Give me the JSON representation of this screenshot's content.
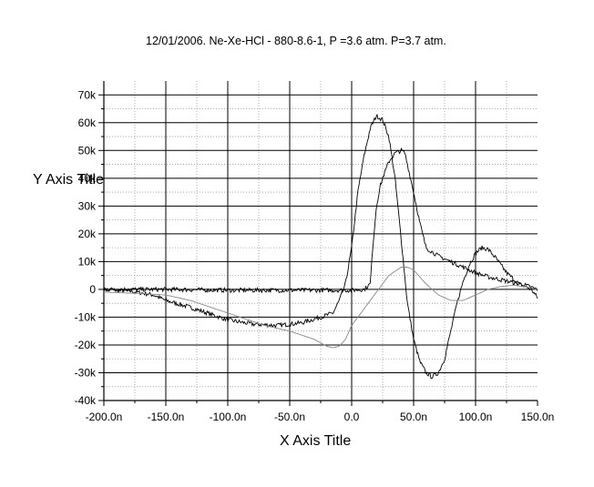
{
  "chart_data": {
    "type": "line",
    "title": "12/01/2006. Ne-Xe-HCl - 880-8.6-1, P =3.6 atm. P=3.7 atm.",
    "xlabel": "X Axis Title",
    "ylabel": "Y Axis Title",
    "xlim": [
      -200,
      150
    ],
    "ylim": [
      -40000,
      75000
    ],
    "x_unit_suffix": "n",
    "xticks": [
      -200,
      -150,
      -100,
      -50,
      0,
      50,
      100,
      150
    ],
    "xtick_labels": [
      "-200.0n",
      "-150.0n",
      "-100.0n",
      "-50.0n",
      "0.0",
      "50.0n",
      "100.0n",
      "150.0n"
    ],
    "yticks": [
      -40000,
      -30000,
      -20000,
      -10000,
      0,
      10000,
      20000,
      30000,
      40000,
      50000,
      60000,
      70000
    ],
    "ytick_labels": [
      "-40k",
      "-30k",
      "-20k",
      "-10k",
      "0",
      "10k",
      "20k",
      "30k",
      "40k",
      "50k",
      "60k",
      "70k"
    ],
    "grid": true,
    "legend": "none",
    "series": [
      {
        "color": "#000000",
        "noisy": true,
        "x": [
          -200,
          -180,
          -160,
          -150,
          -130,
          -100,
          -80,
          -60,
          -40,
          -25,
          -15,
          -10,
          -5,
          0,
          5,
          10,
          15,
          20,
          25,
          30,
          35,
          40,
          45,
          50,
          55,
          60,
          65,
          70,
          75,
          80,
          85,
          90,
          95,
          100,
          105,
          110,
          115,
          120,
          125,
          130,
          135,
          140,
          145,
          150
        ],
        "y": [
          0,
          -500,
          -2000,
          -4000,
          -6500,
          -11000,
          -12500,
          -13000,
          -12000,
          -10000,
          -8500,
          -4000,
          2000,
          15000,
          35000,
          48000,
          58000,
          62500,
          61000,
          55000,
          40000,
          18000,
          -5000,
          -18000,
          -26000,
          -30000,
          -31500,
          -30000,
          -25000,
          -15000,
          -5000,
          3000,
          9000,
          13000,
          15000,
          14500,
          12000,
          9000,
          6000,
          4000,
          2000,
          1000,
          0,
          -3000
        ]
      },
      {
        "color": "#000000",
        "noisy": true,
        "x": [
          -200,
          -150,
          -100,
          -50,
          0,
          10,
          15,
          17,
          20,
          23,
          25,
          30,
          35,
          40,
          43,
          45,
          50,
          55,
          60,
          70,
          80,
          90,
          100,
          110,
          120,
          130,
          140,
          150
        ],
        "y": [
          0,
          0,
          -300,
          -300,
          -300,
          0,
          2000,
          15000,
          30000,
          37000,
          40000,
          46000,
          49000,
          50000,
          49000,
          45000,
          35000,
          24000,
          15000,
          12000,
          10000,
          8000,
          6000,
          4500,
          3500,
          2500,
          1500,
          0
        ]
      },
      {
        "color": "#888888",
        "noisy": false,
        "x": [
          -200,
          -170,
          -150,
          -130,
          -110,
          -90,
          -70,
          -50,
          -30,
          -20,
          -15,
          -10,
          -5,
          0,
          10,
          20,
          30,
          40,
          45,
          50,
          60,
          70,
          80,
          90,
          100,
          110,
          120,
          130,
          140,
          150
        ],
        "y": [
          -1000,
          -1500,
          -2000,
          -4000,
          -7000,
          -10000,
          -13000,
          -15000,
          -18000,
          -20500,
          -21000,
          -20500,
          -18000,
          -13000,
          -7000,
          -1000,
          5000,
          8000,
          8000,
          7000,
          2000,
          -2000,
          -4000,
          -4000,
          -2000,
          0,
          1000,
          1500,
          1000,
          0
        ]
      }
    ]
  }
}
